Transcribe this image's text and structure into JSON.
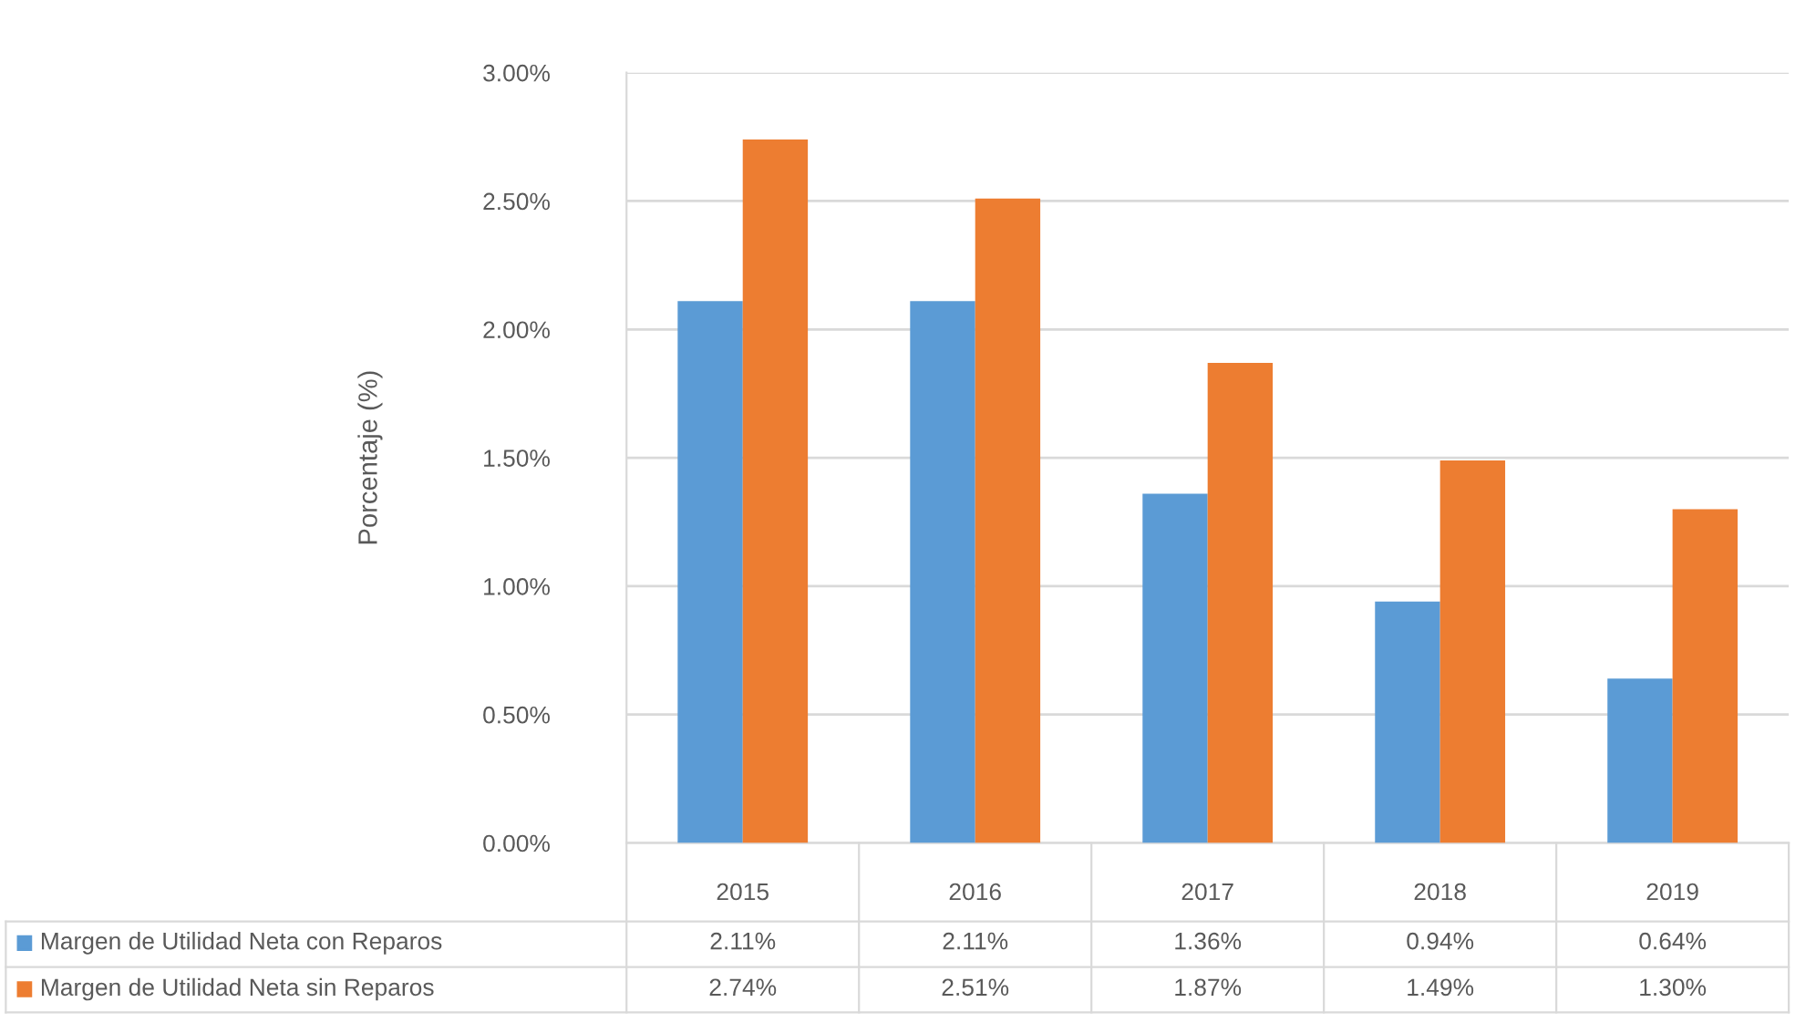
{
  "chart_data": {
    "type": "bar",
    "ylabel": "Porcentaje (%)",
    "categories": [
      "2015",
      "2016",
      "2017",
      "2018",
      "2019"
    ],
    "series": [
      {
        "name": "Margen de Utilidad Neta con Reparos",
        "color": "#5b9bd5",
        "values": [
          2.11,
          2.11,
          1.36,
          0.94,
          0.64
        ],
        "value_labels": [
          "2.11%",
          "2.11%",
          "1.36%",
          "0.94%",
          "0.64%"
        ]
      },
      {
        "name": "Margen de Utilidad Neta sin Reparos",
        "color": "#ed7d31",
        "values": [
          2.74,
          2.51,
          1.87,
          1.49,
          1.3
        ],
        "value_labels": [
          "2.74%",
          "2.51%",
          "1.87%",
          "1.49%",
          "1.30%"
        ]
      }
    ],
    "ylim": [
      0,
      3
    ],
    "yticks": [
      {
        "value": 0,
        "label": "0.00%"
      },
      {
        "value": 0.5,
        "label": "0.50%"
      },
      {
        "value": 1,
        "label": "1.00%"
      },
      {
        "value": 1.5,
        "label": "1.50%"
      },
      {
        "value": 2,
        "label": "2.00%"
      },
      {
        "value": 2.5,
        "label": "2.50%"
      },
      {
        "value": 3,
        "label": "3.00%"
      }
    ],
    "grid": "y",
    "legend": "bottom"
  }
}
